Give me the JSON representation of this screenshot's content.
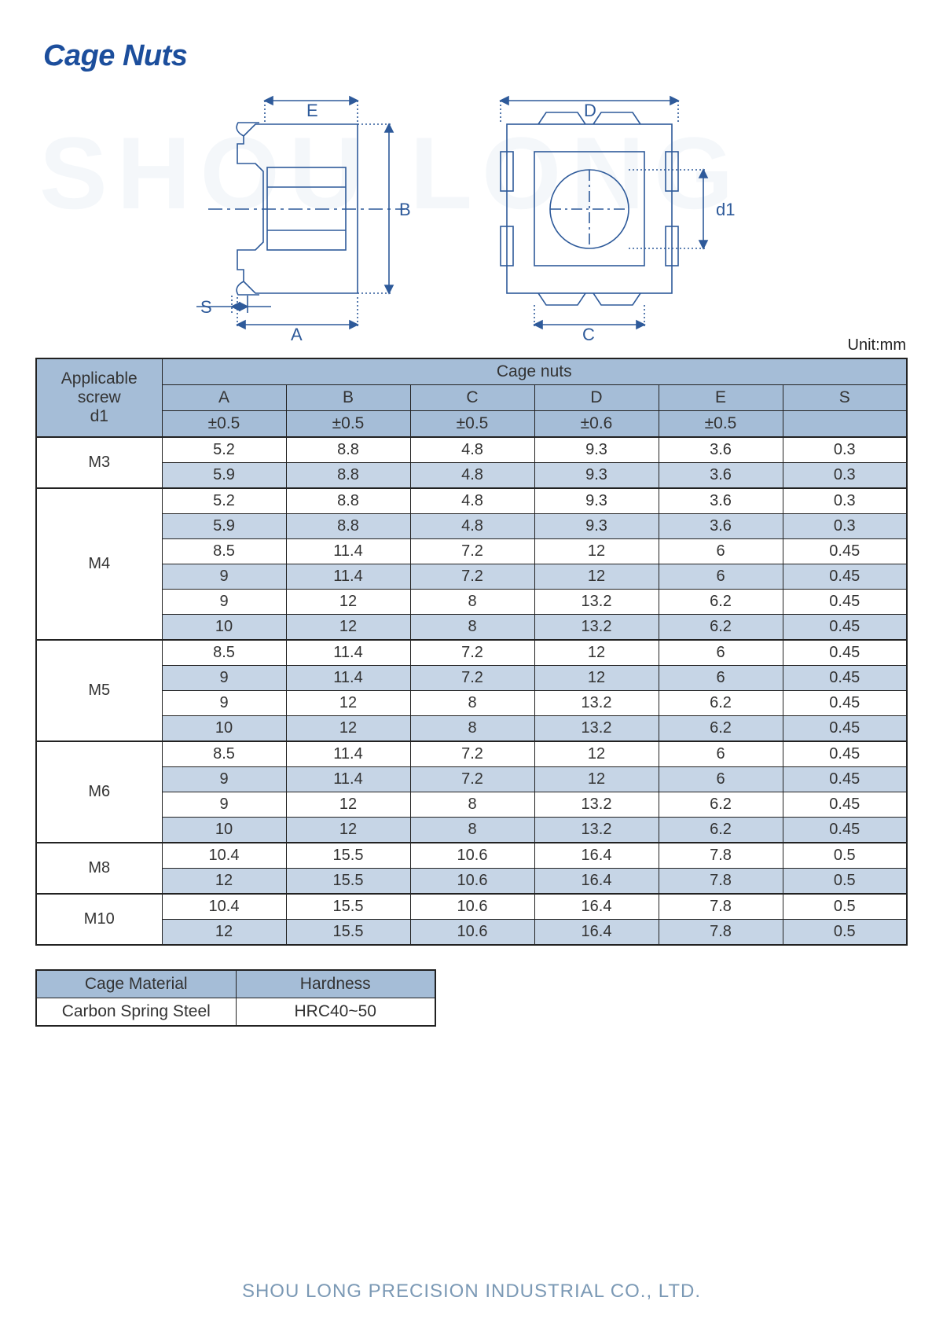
{
  "title": "Cage Nuts",
  "watermark": "SHOU LONG",
  "unit_label": "Unit:mm",
  "diagram": {
    "stroke": "#2e5a9a",
    "labels": {
      "E": "E",
      "B": "B",
      "S": "S",
      "A": "A",
      "D": "D",
      "C": "C",
      "d1": "d1"
    }
  },
  "table": {
    "header_row1_left": "Applicable",
    "header_row2_left": "screw",
    "header_row3_left": "d1",
    "header_group": "Cage nuts",
    "columns": [
      "A",
      "B",
      "C",
      "D",
      "E",
      "S"
    ],
    "tolerances": [
      "±0.5",
      "±0.5",
      "±0.5",
      "±0.6",
      "±0.5",
      ""
    ],
    "groups": [
      {
        "screw": "M3",
        "rows": [
          [
            "5.2",
            "8.8",
            "4.8",
            "9.3",
            "3.6",
            "0.3"
          ],
          [
            "5.9",
            "8.8",
            "4.8",
            "9.3",
            "3.6",
            "0.3"
          ]
        ]
      },
      {
        "screw": "M4",
        "rows": [
          [
            "5.2",
            "8.8",
            "4.8",
            "9.3",
            "3.6",
            "0.3"
          ],
          [
            "5.9",
            "8.8",
            "4.8",
            "9.3",
            "3.6",
            "0.3"
          ],
          [
            "8.5",
            "11.4",
            "7.2",
            "12",
            "6",
            "0.45"
          ],
          [
            "9",
            "11.4",
            "7.2",
            "12",
            "6",
            "0.45"
          ],
          [
            "9",
            "12",
            "8",
            "13.2",
            "6.2",
            "0.45"
          ],
          [
            "10",
            "12",
            "8",
            "13.2",
            "6.2",
            "0.45"
          ]
        ]
      },
      {
        "screw": "M5",
        "rows": [
          [
            "8.5",
            "11.4",
            "7.2",
            "12",
            "6",
            "0.45"
          ],
          [
            "9",
            "11.4",
            "7.2",
            "12",
            "6",
            "0.45"
          ],
          [
            "9",
            "12",
            "8",
            "13.2",
            "6.2",
            "0.45"
          ],
          [
            "10",
            "12",
            "8",
            "13.2",
            "6.2",
            "0.45"
          ]
        ]
      },
      {
        "screw": "M6",
        "rows": [
          [
            "8.5",
            "11.4",
            "7.2",
            "12",
            "6",
            "0.45"
          ],
          [
            "9",
            "11.4",
            "7.2",
            "12",
            "6",
            "0.45"
          ],
          [
            "9",
            "12",
            "8",
            "13.2",
            "6.2",
            "0.45"
          ],
          [
            "10",
            "12",
            "8",
            "13.2",
            "6.2",
            "0.45"
          ]
        ]
      },
      {
        "screw": "M8",
        "rows": [
          [
            "10.4",
            "15.5",
            "10.6",
            "16.4",
            "7.8",
            "0.5"
          ],
          [
            "12",
            "15.5",
            "10.6",
            "16.4",
            "7.8",
            "0.5"
          ]
        ]
      },
      {
        "screw": "M10",
        "rows": [
          [
            "10.4",
            "15.5",
            "10.6",
            "16.4",
            "7.8",
            "0.5"
          ],
          [
            "12",
            "15.5",
            "10.6",
            "16.4",
            "7.8",
            "0.5"
          ]
        ]
      }
    ]
  },
  "material": {
    "head_left": "Cage Material",
    "head_right": "Hardness",
    "val_left": "Carbon Spring Steel",
    "val_right": "HRC40~50"
  },
  "footer": "SHOU LONG PRECISION INDUSTRIAL CO., LTD."
}
